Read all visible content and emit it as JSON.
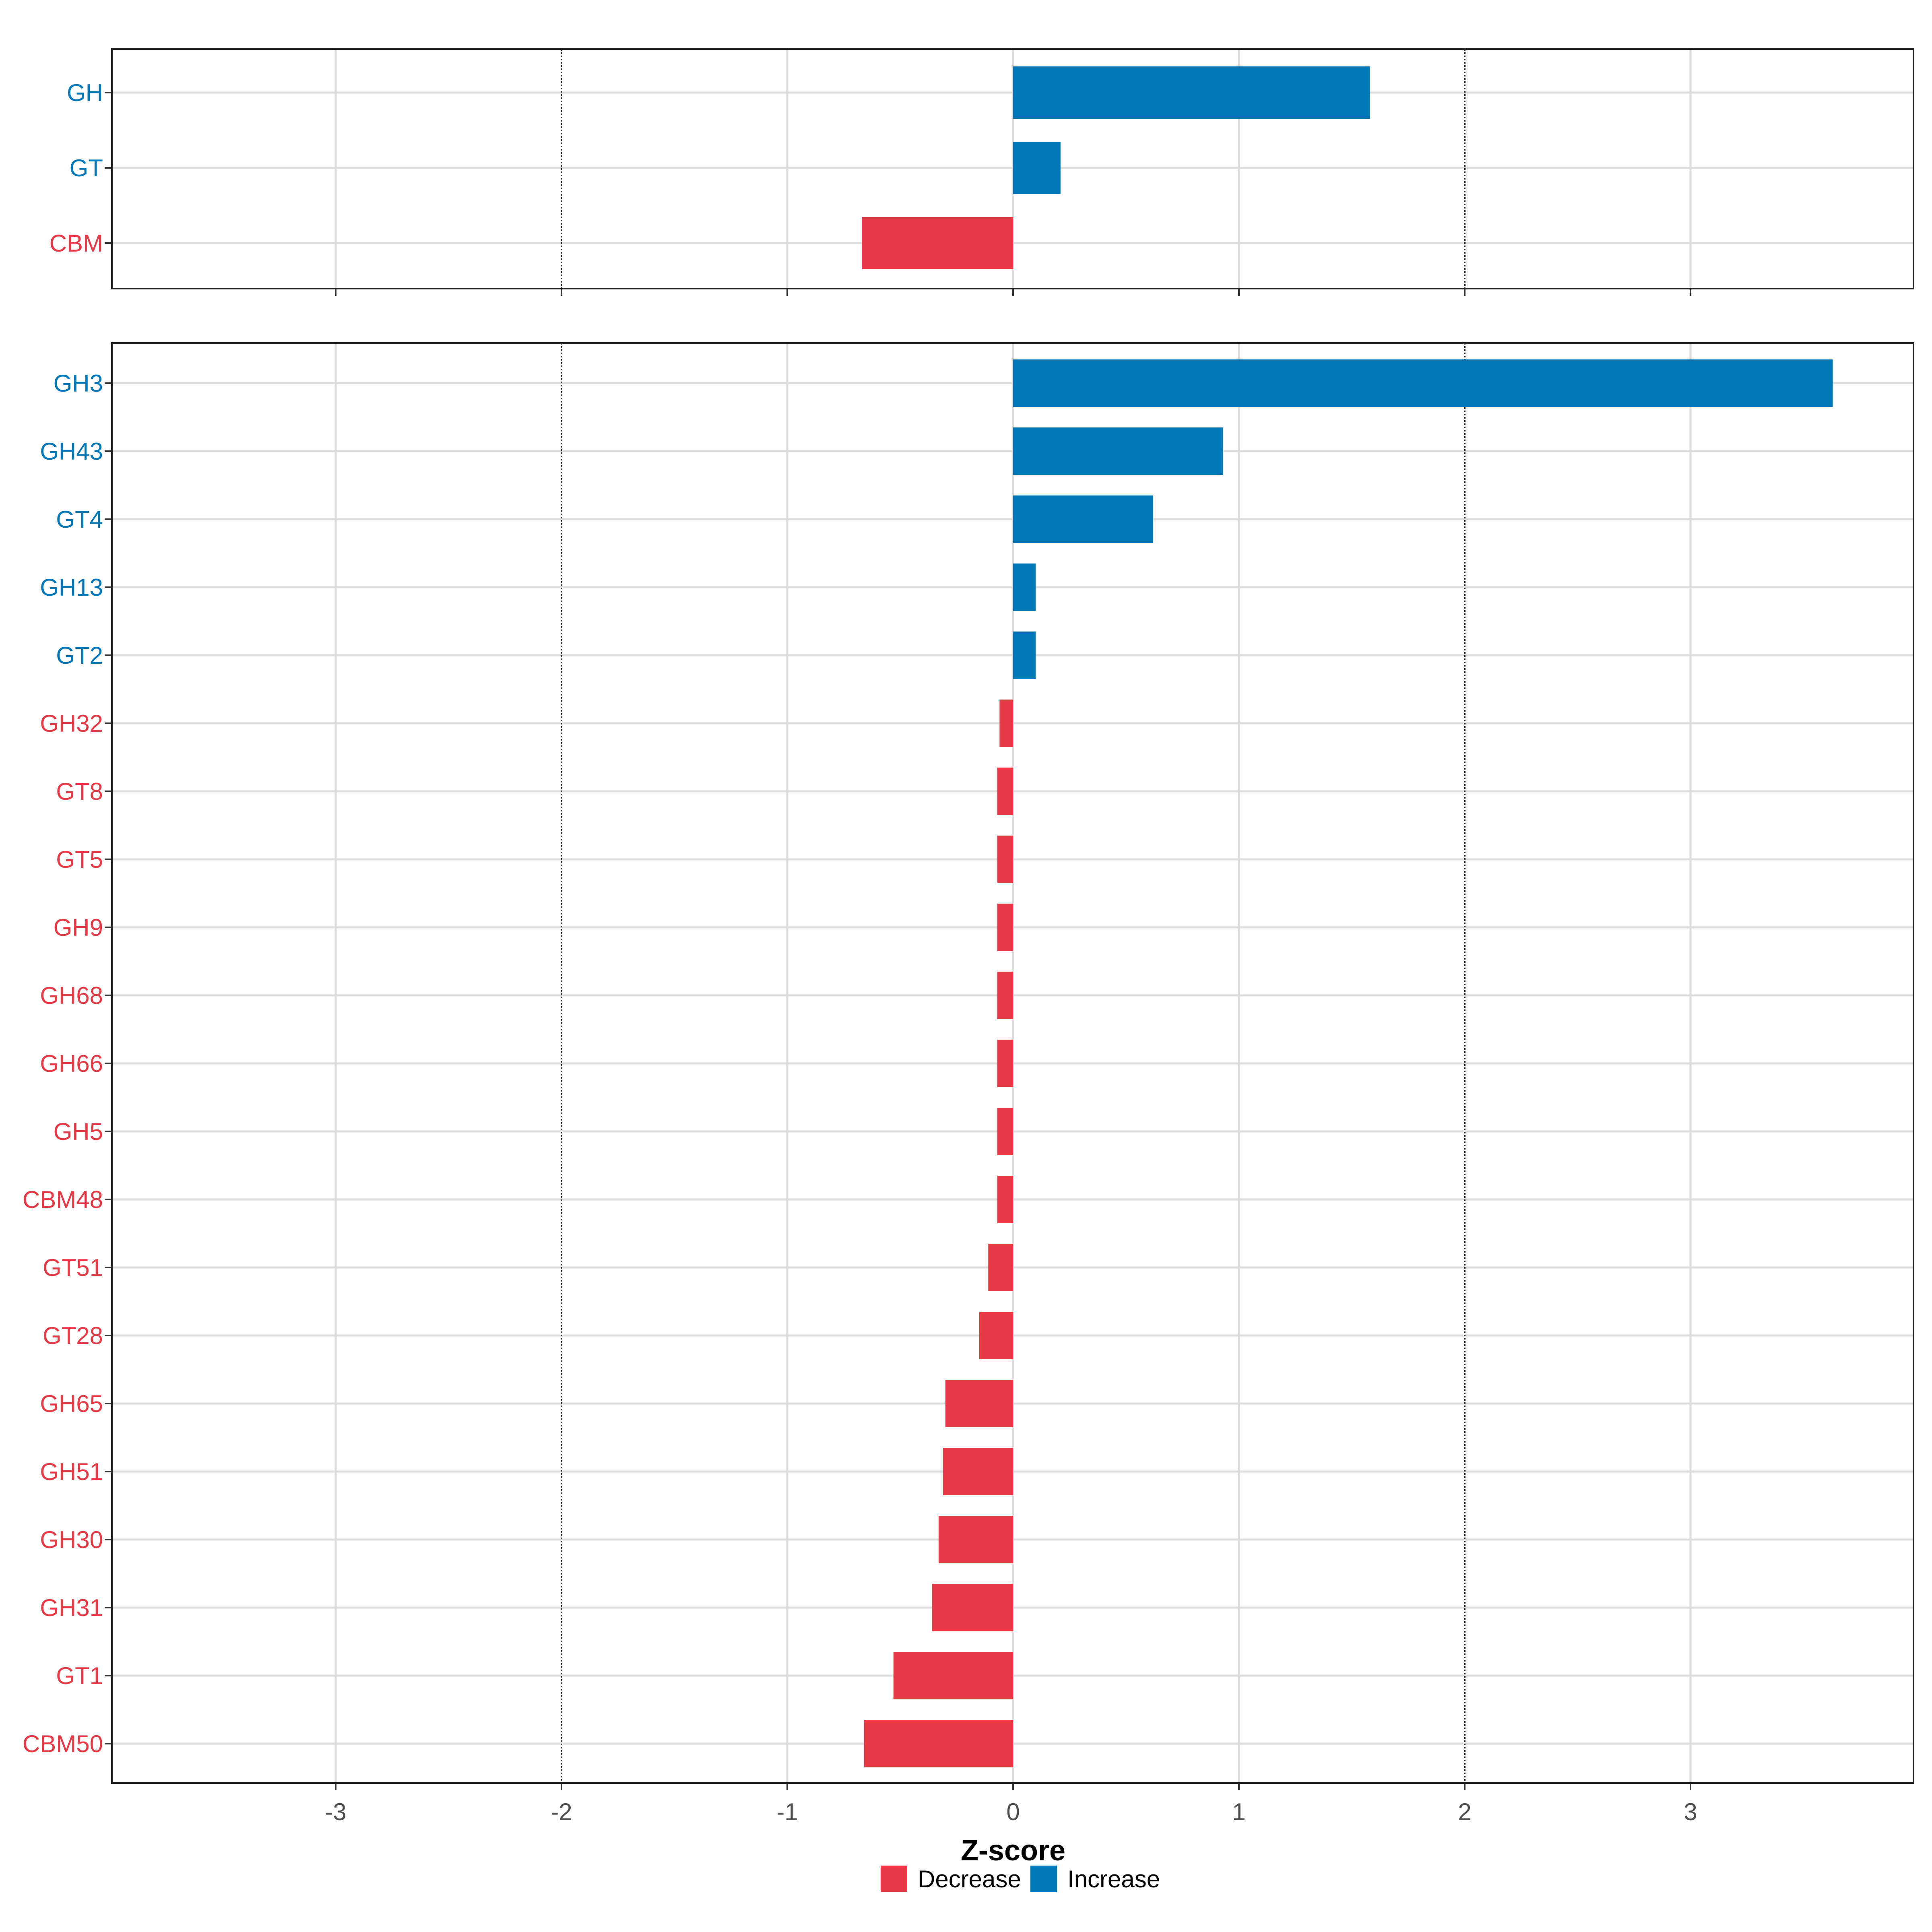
{
  "chart_data": {
    "type": "bar",
    "orientation": "horizontal",
    "xlabel": "Z-score",
    "xlim": [
      -4.0,
      4.0
    ],
    "xticks": [
      -3,
      -2,
      -1,
      0,
      1,
      2,
      3
    ],
    "xtick_labels": [
      "-3",
      "-2",
      "-1",
      "0",
      "1",
      "2",
      "3"
    ],
    "reference_lines": [
      -2,
      2
    ],
    "grid": true,
    "legend_position": "bottom",
    "legend": [
      {
        "label": "Decrease",
        "color": "#e63946"
      },
      {
        "label": "Increase",
        "color": "#0077b6"
      }
    ],
    "panels": [
      {
        "categories": [
          "GH",
          "GT",
          "CBM"
        ],
        "values": [
          1.58,
          0.21,
          -0.67
        ],
        "groups": [
          "Increase",
          "Increase",
          "Decrease"
        ]
      },
      {
        "categories": [
          "GH3",
          "GH43",
          "GT4",
          "GH13",
          "GT2",
          "GH32",
          "GT8",
          "GT5",
          "GH9",
          "GH68",
          "GH66",
          "GH5",
          "CBM48",
          "GT51",
          "GT28",
          "GH65",
          "GH51",
          "GH30",
          "GH31",
          "GT1",
          "CBM50"
        ],
        "values": [
          3.63,
          0.93,
          0.62,
          0.1,
          0.1,
          -0.06,
          -0.07,
          -0.07,
          -0.07,
          -0.07,
          -0.07,
          -0.07,
          -0.07,
          -0.11,
          -0.15,
          -0.3,
          -0.31,
          -0.33,
          -0.36,
          -0.53,
          -0.66
        ],
        "groups": [
          "Increase",
          "Increase",
          "Increase",
          "Increase",
          "Increase",
          "Decrease",
          "Decrease",
          "Decrease",
          "Decrease",
          "Decrease",
          "Decrease",
          "Decrease",
          "Decrease",
          "Decrease",
          "Decrease",
          "Decrease",
          "Decrease",
          "Decrease",
          "Decrease",
          "Decrease",
          "Decrease"
        ]
      }
    ]
  }
}
